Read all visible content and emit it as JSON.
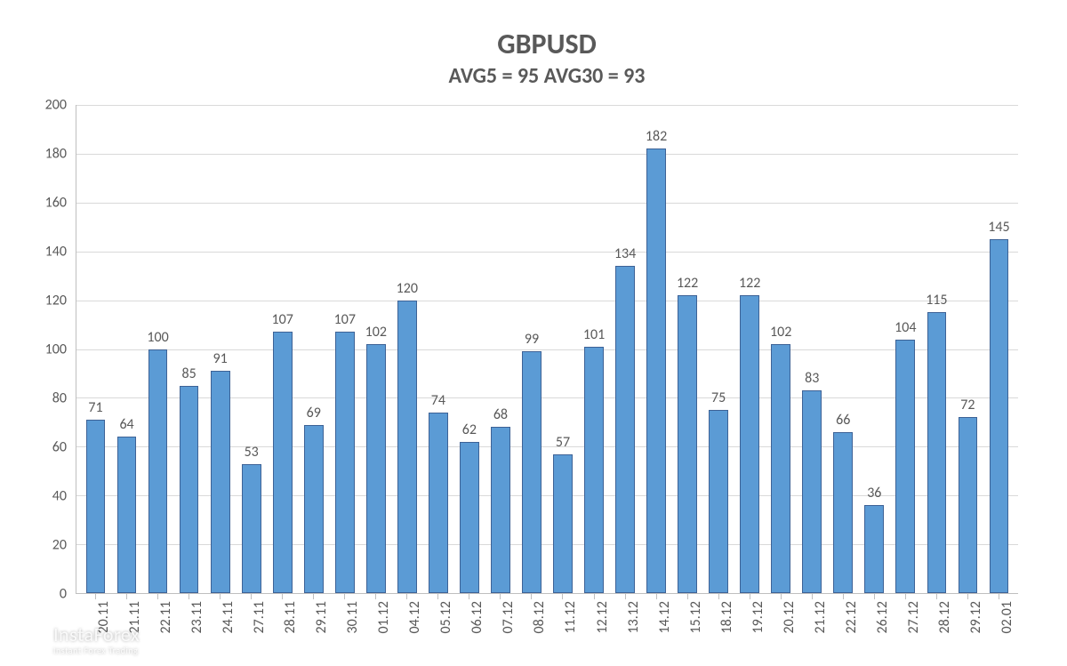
{
  "chart": {
    "type": "bar",
    "title": "GBPUSD",
    "subtitle": "AVG5 = 95 AVG30 = 93",
    "title_fontsize": 32,
    "title_color": "#595959",
    "subtitle_fontsize": 24,
    "subtitle_color": "#595959",
    "background_color": "#ffffff",
    "plot_background_color": "#ffffff",
    "grid_color": "#d9d9d9",
    "axis_line_color": "#bfbfbf",
    "bar_fill_color": "#5b9bd5",
    "bar_border_color": "#3d6296",
    "bar_width": 0.62,
    "value_label_color": "#595959",
    "value_label_fontsize": 16,
    "axis_tick_color": "#595959",
    "axis_tick_fontsize": 16,
    "x_label_rotation_deg": -90,
    "ylim": [
      0,
      200
    ],
    "ytick_step": 20,
    "yticks": [
      0,
      20,
      40,
      60,
      80,
      100,
      120,
      140,
      160,
      180,
      200
    ],
    "categories": [
      "20.11",
      "21.11",
      "22.11",
      "23.11",
      "24.11",
      "27.11",
      "28.11",
      "29.11",
      "30.11",
      "01.12",
      "04.12",
      "05.12",
      "06.12",
      "07.12",
      "08.12",
      "11.12",
      "12.12",
      "13.12",
      "14.12",
      "15.12",
      "18.12",
      "19.12",
      "20.12",
      "21.12",
      "22.12",
      "26.12",
      "27.12",
      "28.12",
      "29.12",
      "02.01"
    ],
    "values": [
      71,
      64,
      100,
      85,
      91,
      53,
      107,
      69,
      107,
      102,
      120,
      74,
      62,
      68,
      99,
      57,
      101,
      134,
      182,
      122,
      75,
      122,
      102,
      83,
      66,
      36,
      104,
      115,
      72,
      145
    ]
  },
  "watermark": {
    "main": "InstaForex",
    "sub": "Instant Forex Trading",
    "color": "rgba(255,255,255,0.85)"
  }
}
